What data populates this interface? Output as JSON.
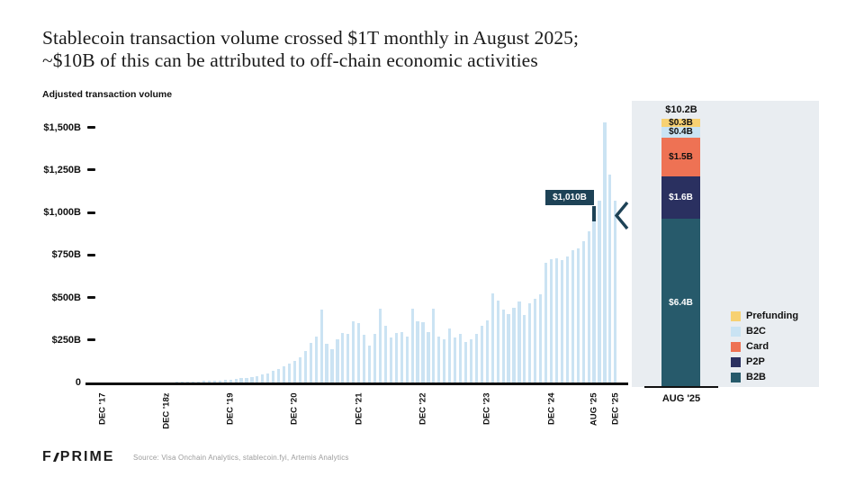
{
  "slide": {
    "title_line1": "Stablecoin transaction volume crossed $1T monthly in August 2025;",
    "title_line2": "~$10B of this can be attributed to off-chain economic activities",
    "footer": {
      "logo_f": "F",
      "logo_prime": "PRIME",
      "source": "Source: Visa Onchain Analytics, stablecoin.fyi, Artemis Analytics"
    }
  },
  "chart_data": {
    "type": "bar",
    "title": "Adjusted transaction volume",
    "unit": "$B (billions USD)",
    "grid": "off",
    "colors": {
      "bar": "#cbe3f3",
      "highlight": "#1d4256",
      "axis": "#111111"
    },
    "y_axis": {
      "label": "Adjusted transaction volume",
      "range": [
        0,
        1550
      ],
      "ticks": [
        {
          "label": "$1,500B",
          "value": 1500
        },
        {
          "label": "$1,250B",
          "value": 1250
        },
        {
          "label": "$1,000B",
          "value": 1000
        },
        {
          "label": "$750B",
          "value": 750
        },
        {
          "label": "$500B",
          "value": 500
        },
        {
          "label": "$250B",
          "value": 250
        },
        {
          "label": "0",
          "value": 0
        }
      ]
    },
    "x_axis": {
      "ticks": [
        {
          "label": "DEC '17",
          "month_index": 0
        },
        {
          "label": "DEC '18z",
          "month_index": 12
        },
        {
          "label": "DEC '19",
          "month_index": 24
        },
        {
          "label": "DEC '20",
          "month_index": 36
        },
        {
          "label": "DEC '21",
          "month_index": 48
        },
        {
          "label": "DEC '22",
          "month_index": 60
        },
        {
          "label": "DEC '23",
          "month_index": 72
        },
        {
          "label": "DEC '24",
          "month_index": 84
        },
        {
          "label": "AUG '25",
          "month_index": 92
        },
        {
          "label": "DEC '25",
          "month_index": 96
        }
      ]
    },
    "monthly": {
      "start_month": "Dec 2017",
      "end_month": "Dec 2025",
      "values_billions": [
        1,
        1,
        1,
        1,
        1,
        1,
        1,
        1,
        1,
        1,
        2,
        2,
        2,
        2,
        3,
        3,
        4,
        5,
        6,
        8,
        9,
        11,
        13,
        16,
        18,
        20,
        24,
        28,
        33,
        38,
        45,
        55,
        68,
        82,
        95,
        110,
        125,
        150,
        185,
        235,
        270,
        430,
        225,
        195,
        255,
        290,
        285,
        360,
        350,
        280,
        215,
        285,
        435,
        335,
        265,
        290,
        295,
        270,
        435,
        360,
        355,
        295,
        435,
        270,
        255,
        320,
        265,
        285,
        240,
        255,
        285,
        335,
        365,
        525,
        480,
        430,
        400,
        440,
        475,
        395,
        465,
        490,
        520,
        705,
        725,
        730,
        720,
        740,
        780,
        790,
        830,
        890,
        1010,
        1070,
        1530,
        1220,
        1070
      ],
      "highlight": {
        "month": "AUG '25",
        "month_index": 92,
        "value": 1010,
        "label": "$1,010B"
      }
    },
    "breakdown": {
      "total_label": "$10.2B",
      "total_value": 10.2,
      "x_label": "AUG '25",
      "segments": [
        {
          "name": "Prefunding",
          "label": "$0.3B",
          "value": 0.3,
          "color": "#f7d172",
          "text_color": "#111111"
        },
        {
          "name": "B2C",
          "label": "$0.4B",
          "value": 0.4,
          "color": "#c9e3f3",
          "text_color": "#111111"
        },
        {
          "name": "Card",
          "label": "$1.5B",
          "value": 1.5,
          "color": "#ee7254",
          "text_color": "#111111"
        },
        {
          "name": "P2P",
          "label": "$1.6B",
          "value": 1.6,
          "color": "#2a3060",
          "text_color": "#ffffff"
        },
        {
          "name": "B2B",
          "label": "$6.4B",
          "value": 6.4,
          "color": "#275a6b",
          "text_color": "#ffffff"
        }
      ],
      "legend_position": "right-bottom",
      "legend": [
        "Prefunding",
        "B2C",
        "Card",
        "P2P",
        "B2B"
      ]
    }
  }
}
